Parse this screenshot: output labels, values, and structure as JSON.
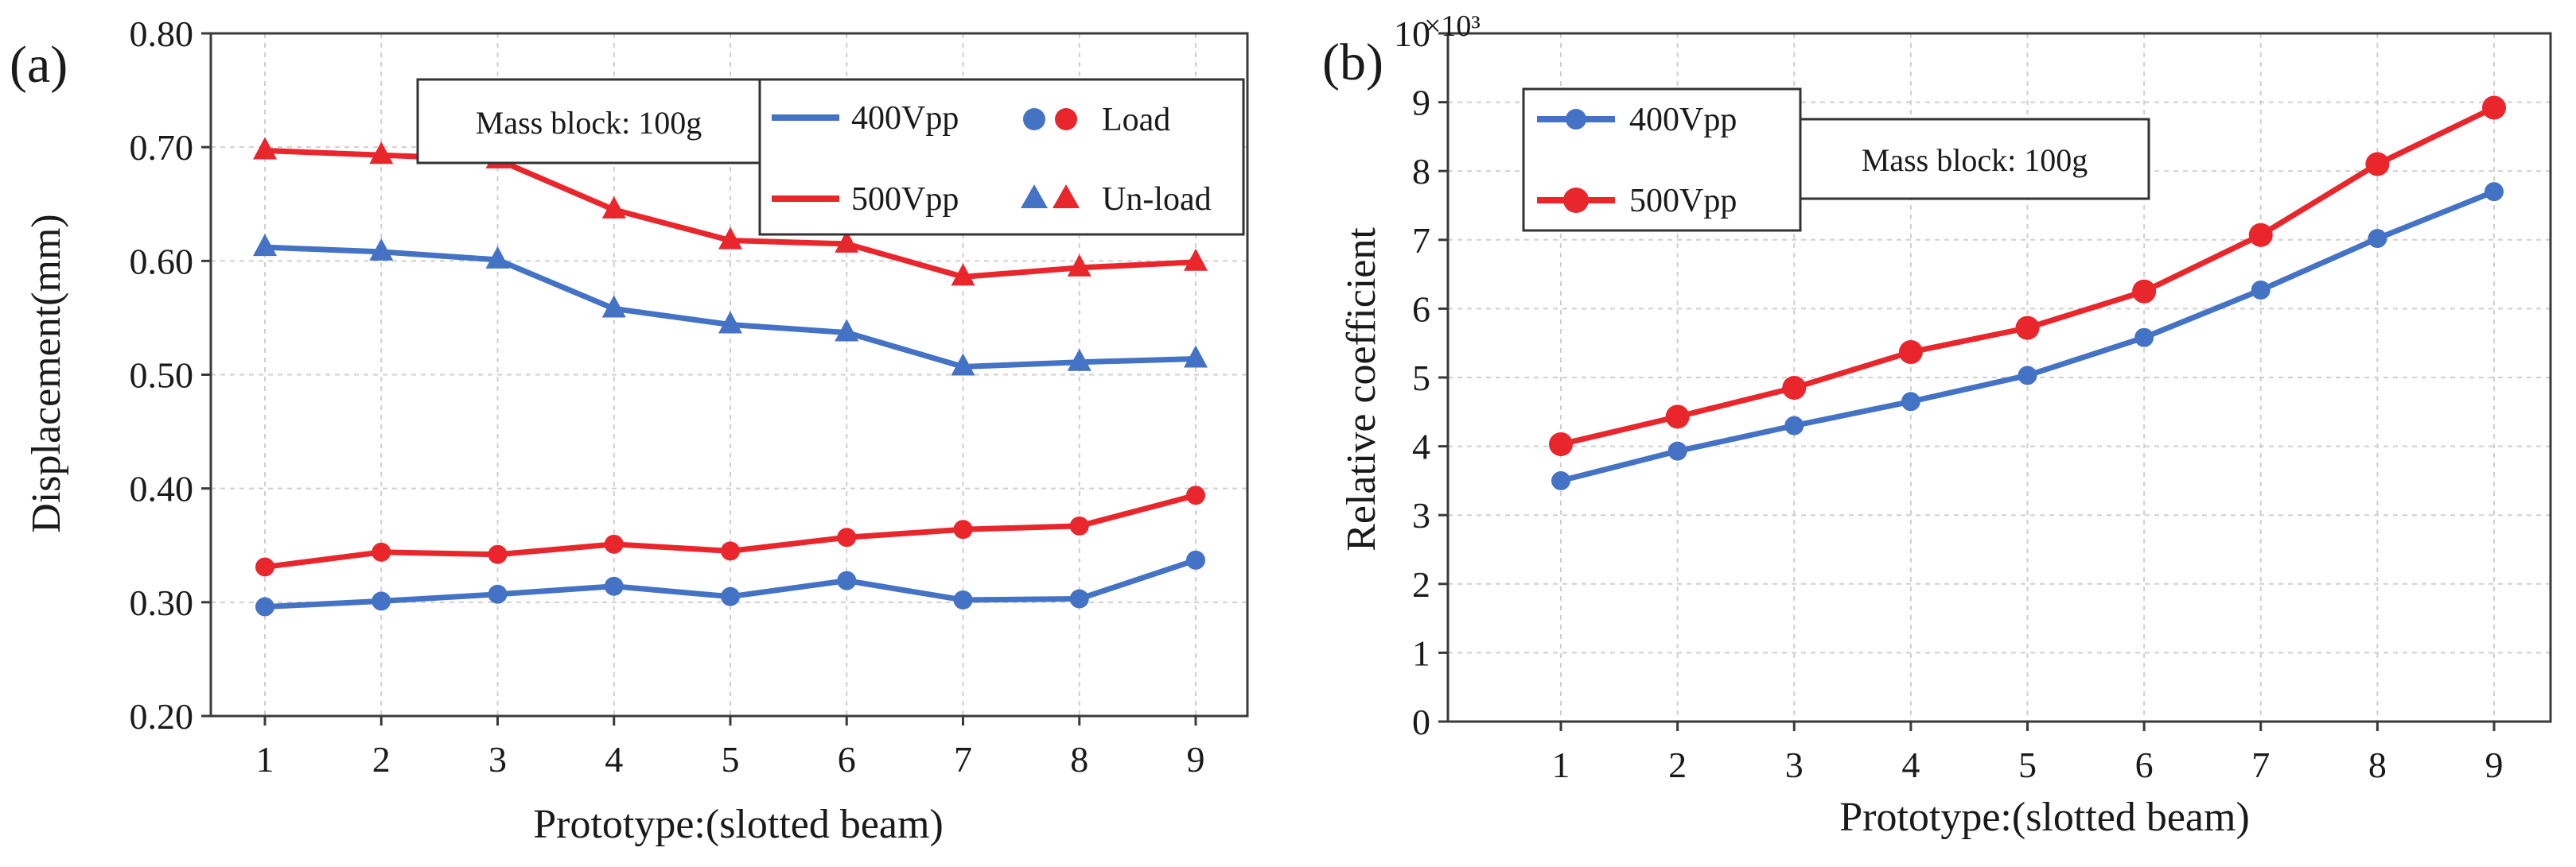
{
  "colors": {
    "blue": "#4472C4",
    "red": "#E8262C",
    "grid": "#cfcfcf",
    "axis": "#3a3a3a",
    "text": "#1a1a1a"
  },
  "chart_data": [
    {
      "panel": "(a)",
      "type": "line",
      "xlabel": "Prototype:(slotted beam)",
      "ylabel": "Displacement(mm)",
      "categories": [
        "1",
        "2",
        "3",
        "4",
        "5",
        "6",
        "7",
        "8",
        "9"
      ],
      "ylim": [
        0.2,
        0.8
      ],
      "yticks": [
        "0.20",
        "0.30",
        "0.40",
        "0.50",
        "0.60",
        "0.70",
        "0.80"
      ],
      "annotation": "Mass block: 100g",
      "legend": {
        "line_400": "400Vpp",
        "line_500": "500Vpp",
        "load": "Load",
        "unload": "Un-load"
      },
      "series": [
        {
          "name": "400Vpp Load",
          "color": "blue",
          "marker": "circle",
          "values": [
            0.296,
            0.301,
            0.307,
            0.314,
            0.305,
            0.319,
            0.302,
            0.303,
            0.337
          ]
        },
        {
          "name": "500Vpp Load",
          "color": "red",
          "marker": "circle",
          "values": [
            0.331,
            0.344,
            0.342,
            0.351,
            0.345,
            0.357,
            0.364,
            0.367,
            0.394
          ]
        },
        {
          "name": "400Vpp Un-load",
          "color": "blue",
          "marker": "triangle",
          "values": [
            0.612,
            0.608,
            0.601,
            0.558,
            0.544,
            0.537,
            0.507,
            0.511,
            0.514
          ]
        },
        {
          "name": "500Vpp Un-load",
          "color": "red",
          "marker": "triangle",
          "values": [
            0.697,
            0.693,
            0.689,
            0.645,
            0.618,
            0.615,
            0.586,
            0.594,
            0.599
          ]
        }
      ]
    },
    {
      "panel": "(b)",
      "type": "line",
      "xlabel": "Prototype:(slotted beam)",
      "ylabel": "Relative coefficient",
      "multiplier": "×10³",
      "categories": [
        "1",
        "2",
        "3",
        "4",
        "5",
        "6",
        "7",
        "8",
        "9"
      ],
      "ylim": [
        0,
        10
      ],
      "yticks": [
        "0",
        "1",
        "2",
        "3",
        "4",
        "5",
        "6",
        "7",
        "8",
        "9",
        "10"
      ],
      "annotation": "Mass block: 100g",
      "series": [
        {
          "name": "400Vpp",
          "color": "blue",
          "marker": "circle",
          "values": [
            3.5,
            3.93,
            4.3,
            4.65,
            5.03,
            5.58,
            6.27,
            7.02,
            7.7
          ]
        },
        {
          "name": "500Vpp",
          "color": "red",
          "marker": "circle",
          "values": [
            4.03,
            4.43,
            4.85,
            5.37,
            5.72,
            6.25,
            7.07,
            8.1,
            8.92
          ]
        }
      ]
    }
  ]
}
